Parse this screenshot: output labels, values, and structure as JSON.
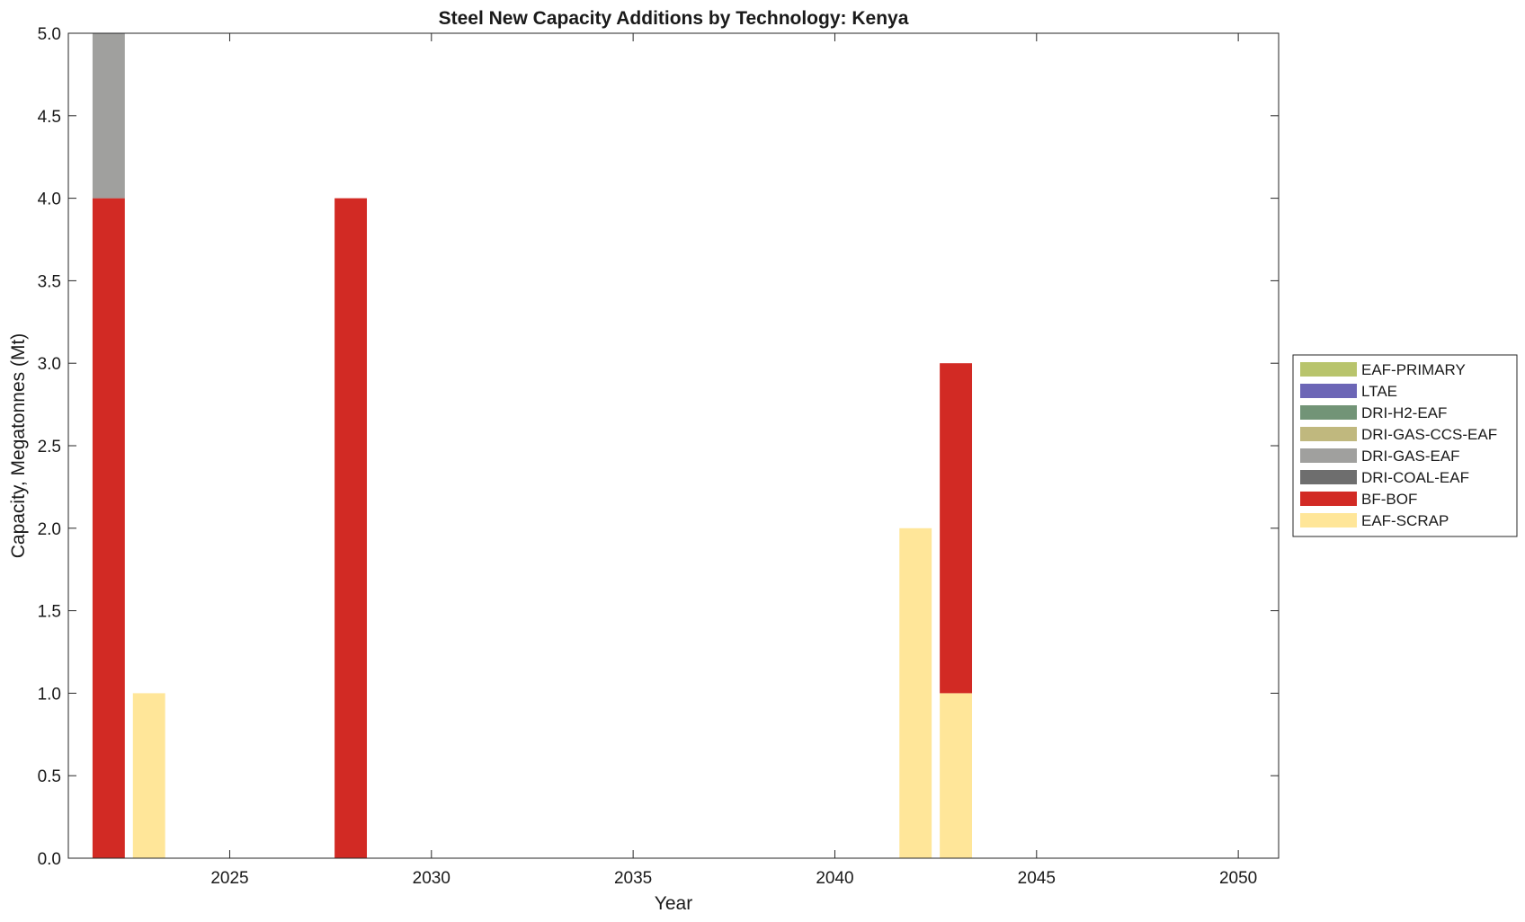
{
  "chart_data": {
    "type": "bar",
    "stacked": true,
    "title": "Steel New Capacity Additions by Technology: Kenya",
    "xlabel": "Year",
    "ylabel": "Capacity, Megatonnes (Mt)",
    "xlim": [
      2021,
      2051
    ],
    "ylim": [
      0,
      5
    ],
    "x_ticks": [
      "2025",
      "2030",
      "2035",
      "2040",
      "2045",
      "2050"
    ],
    "y_ticks": [
      "0.0",
      "0.5",
      "1.0",
      "1.5",
      "2.0",
      "2.5",
      "3.0",
      "3.5",
      "4.0",
      "4.5",
      "5.0"
    ],
    "x": [
      2022,
      2023,
      2028,
      2042,
      2043
    ],
    "series": [
      {
        "name": "EAF-SCRAP",
        "color": "#ffe699",
        "values": [
          0,
          1,
          0,
          2,
          1
        ]
      },
      {
        "name": "BF-BOF",
        "color": "#d22a24",
        "values": [
          4,
          0,
          4,
          0,
          2
        ]
      },
      {
        "name": "DRI-COAL-EAF",
        "color": "#6e6e6e",
        "values": [
          0,
          0,
          0,
          0,
          0
        ]
      },
      {
        "name": "DRI-GAS-EAF",
        "color": "#a0a09e",
        "values": [
          1,
          0,
          0,
          0,
          0
        ]
      },
      {
        "name": "DRI-GAS-CCS-EAF",
        "color": "#c0b87e",
        "values": [
          0,
          0,
          0,
          0,
          0
        ]
      },
      {
        "name": "DRI-H2-EAF",
        "color": "#729477",
        "values": [
          0,
          0,
          0,
          0,
          0
        ]
      },
      {
        "name": "LTAE",
        "color": "#6c66b6",
        "values": [
          0,
          0,
          0,
          0,
          0
        ]
      },
      {
        "name": "EAF-PRIMARY",
        "color": "#b8c46c",
        "values": [
          0,
          0,
          0,
          0,
          0
        ]
      }
    ],
    "legend_order": [
      "EAF-PRIMARY",
      "LTAE",
      "DRI-H2-EAF",
      "DRI-GAS-CCS-EAF",
      "DRI-GAS-EAF",
      "DRI-COAL-EAF",
      "BF-BOF",
      "EAF-SCRAP"
    ],
    "legend_position": "right",
    "grid": false
  }
}
